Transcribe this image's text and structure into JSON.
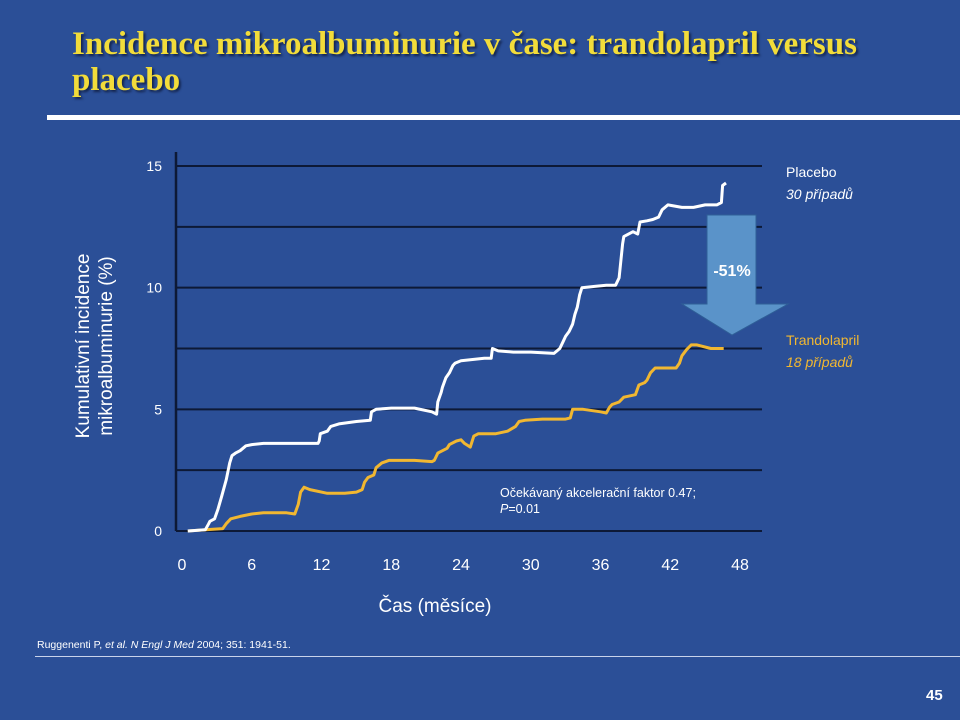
{
  "slide": {
    "title": "Incidence mikroalbuminurie v čase: trandolapril versus placebo",
    "citation_prefix": "Ruggenenti P, ",
    "citation_etal": "et al. N Engl J Med",
    "citation_suffix": " 2004; 351: 1941-51.",
    "page_number": "45"
  },
  "colors": {
    "background": "#2b4f97",
    "title": "#f2dc3a",
    "placebo": "#ffffff",
    "trandolapril": "#f1b731",
    "arrow": "#5a93c9",
    "gridline": "#0d1936"
  },
  "chart_data": {
    "type": "line",
    "title": "",
    "xlabel": "Čas (měsíce)",
    "ylabel_line1": "Kumulativní incidence",
    "ylabel_line2": "mikroalbuminurie (%)",
    "xlim": [
      0,
      48
    ],
    "ylim": [
      0,
      15
    ],
    "x_ticks": [
      0,
      6,
      12,
      18,
      24,
      30,
      36,
      42,
      48
    ],
    "y_ticks": [
      0,
      5,
      10,
      15
    ],
    "gridlines": [
      0,
      2.5,
      5,
      7.5,
      10,
      12.5,
      15
    ],
    "series": [
      {
        "name": "Placebo",
        "cases_label": "30 případů",
        "points": [
          [
            0.5,
            0.0
          ],
          [
            2.0,
            0.05
          ],
          [
            2.3,
            0.3
          ],
          [
            2.4,
            0.4
          ],
          [
            2.8,
            0.5
          ],
          [
            3.1,
            0.9
          ],
          [
            3.4,
            1.4
          ],
          [
            3.8,
            2.1
          ],
          [
            4.1,
            2.8
          ],
          [
            4.3,
            3.1
          ],
          [
            4.6,
            3.2
          ],
          [
            5.0,
            3.3
          ],
          [
            5.5,
            3.5
          ],
          [
            6.0,
            3.55
          ],
          [
            7.0,
            3.6
          ],
          [
            8.0,
            3.6
          ],
          [
            10.0,
            3.6
          ],
          [
            11.7,
            3.6
          ],
          [
            11.8,
            3.7
          ],
          [
            11.9,
            4.0
          ],
          [
            12.5,
            4.1
          ],
          [
            12.8,
            4.3
          ],
          [
            13.5,
            4.4
          ],
          [
            15.0,
            4.5
          ],
          [
            16.2,
            4.55
          ],
          [
            16.3,
            4.9
          ],
          [
            16.7,
            5.0
          ],
          [
            18.0,
            5.05
          ],
          [
            20.0,
            5.05
          ],
          [
            21.5,
            4.9
          ],
          [
            21.9,
            4.8
          ],
          [
            22.0,
            5.3
          ],
          [
            22.3,
            5.7
          ],
          [
            22.4,
            5.9
          ],
          [
            22.7,
            6.3
          ],
          [
            23.0,
            6.5
          ],
          [
            23.3,
            6.8
          ],
          [
            23.5,
            6.9
          ],
          [
            24.0,
            7.0
          ],
          [
            25.0,
            7.05
          ],
          [
            26.0,
            7.1
          ],
          [
            26.6,
            7.1
          ],
          [
            26.7,
            7.5
          ],
          [
            27.2,
            7.4
          ],
          [
            28.5,
            7.35
          ],
          [
            30.0,
            7.35
          ],
          [
            32.0,
            7.3
          ],
          [
            32.5,
            7.5
          ],
          [
            32.8,
            7.8
          ],
          [
            33.0,
            8.0
          ],
          [
            33.3,
            8.2
          ],
          [
            33.6,
            8.5
          ],
          [
            33.8,
            8.9
          ],
          [
            34.0,
            9.2
          ],
          [
            34.2,
            9.7
          ],
          [
            34.4,
            10.0
          ],
          [
            35.5,
            10.05
          ],
          [
            36.5,
            10.1
          ],
          [
            37.3,
            10.1
          ],
          [
            37.6,
            10.4
          ],
          [
            37.9,
            11.8
          ],
          [
            38.0,
            12.1
          ],
          [
            38.8,
            12.3
          ],
          [
            39.2,
            12.2
          ],
          [
            39.4,
            12.7
          ],
          [
            40.0,
            12.75
          ],
          [
            40.5,
            12.8
          ],
          [
            41.0,
            12.9
          ],
          [
            41.3,
            13.2
          ],
          [
            41.8,
            13.4
          ],
          [
            43.0,
            13.3
          ],
          [
            44.0,
            13.3
          ],
          [
            45.0,
            13.4
          ],
          [
            46.0,
            13.4
          ],
          [
            46.4,
            13.5
          ],
          [
            46.5,
            14.2
          ],
          [
            46.8,
            14.3
          ]
        ]
      },
      {
        "name": "Trandolapril",
        "cases_label": "18 případů",
        "points": [
          [
            0.5,
            0.0
          ],
          [
            2.0,
            0.05
          ],
          [
            3.5,
            0.1
          ],
          [
            3.8,
            0.3
          ],
          [
            4.2,
            0.5
          ],
          [
            5.0,
            0.6
          ],
          [
            6.0,
            0.7
          ],
          [
            7.0,
            0.75
          ],
          [
            8.0,
            0.75
          ],
          [
            9.0,
            0.75
          ],
          [
            9.7,
            0.7
          ],
          [
            10.0,
            1.1
          ],
          [
            10.2,
            1.6
          ],
          [
            10.5,
            1.8
          ],
          [
            11.0,
            1.7
          ],
          [
            12.5,
            1.55
          ],
          [
            14.0,
            1.55
          ],
          [
            15.0,
            1.6
          ],
          [
            15.5,
            1.7
          ],
          [
            15.7,
            2.0
          ],
          [
            16.0,
            2.2
          ],
          [
            16.5,
            2.3
          ],
          [
            16.7,
            2.6
          ],
          [
            17.2,
            2.8
          ],
          [
            17.8,
            2.9
          ],
          [
            20.0,
            2.9
          ],
          [
            21.5,
            2.85
          ],
          [
            21.7,
            2.9
          ],
          [
            22.0,
            3.2
          ],
          [
            22.8,
            3.4
          ],
          [
            23.0,
            3.55
          ],
          [
            23.6,
            3.7
          ],
          [
            24.0,
            3.75
          ],
          [
            24.3,
            3.6
          ],
          [
            24.8,
            3.45
          ],
          [
            25.1,
            3.9
          ],
          [
            25.5,
            4.0
          ],
          [
            27.0,
            4.0
          ],
          [
            28.0,
            4.1
          ],
          [
            28.7,
            4.3
          ],
          [
            29.0,
            4.5
          ],
          [
            29.5,
            4.55
          ],
          [
            31.0,
            4.6
          ],
          [
            33.0,
            4.6
          ],
          [
            33.4,
            4.65
          ],
          [
            33.6,
            5.0
          ],
          [
            34.5,
            5.0
          ],
          [
            36.0,
            4.9
          ],
          [
            36.5,
            4.85
          ],
          [
            36.8,
            5.1
          ],
          [
            37.0,
            5.2
          ],
          [
            37.6,
            5.3
          ],
          [
            38.0,
            5.5
          ],
          [
            39.0,
            5.6
          ],
          [
            39.3,
            6.0
          ],
          [
            39.8,
            6.1
          ],
          [
            40.0,
            6.2
          ],
          [
            40.3,
            6.5
          ],
          [
            40.7,
            6.7
          ],
          [
            41.5,
            6.7
          ],
          [
            42.5,
            6.7
          ],
          [
            42.8,
            6.9
          ],
          [
            43.0,
            7.2
          ],
          [
            43.4,
            7.45
          ],
          [
            43.8,
            7.65
          ],
          [
            44.3,
            7.65
          ],
          [
            45.5,
            7.5
          ],
          [
            46.6,
            7.5
          ]
        ]
      }
    ],
    "annotations": {
      "reduction": "-51%",
      "stat_line1": "Očekávaný akcelerační faktor 0.47;",
      "stat_p_symbol": "P",
      "stat_p_value": "=0.01"
    }
  }
}
